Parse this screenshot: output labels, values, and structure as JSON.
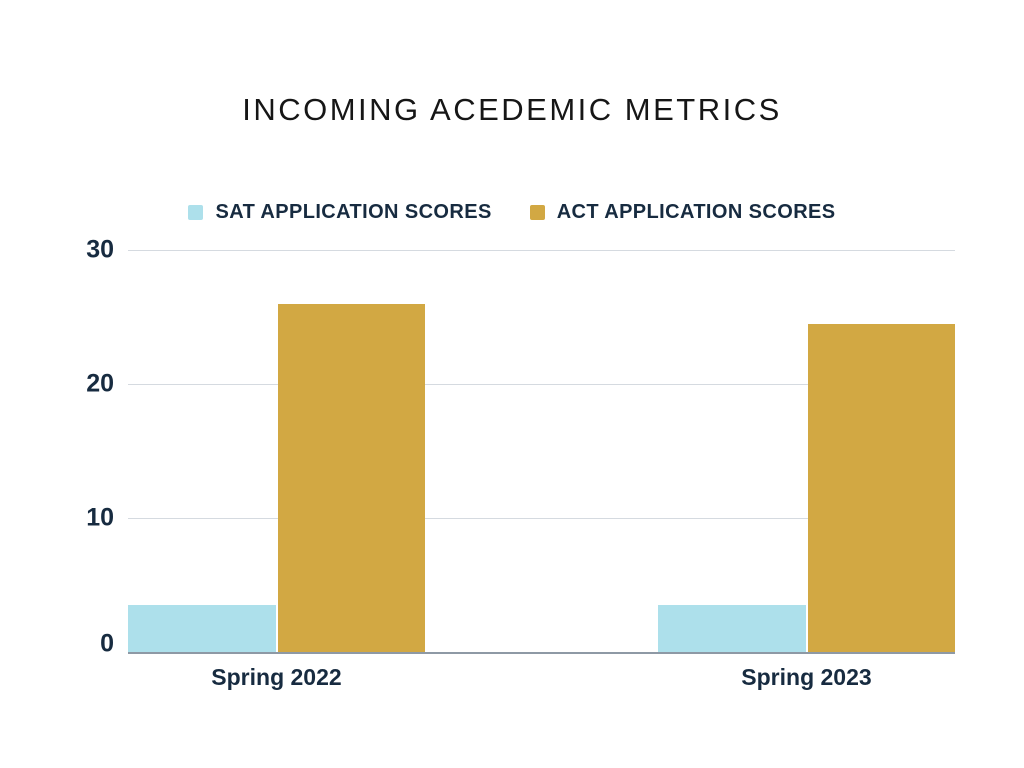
{
  "chart_data": {
    "type": "bar",
    "title": "INCOMING ACEDEMIC METRICS",
    "categories": [
      "Spring 2022",
      "Spring 2023"
    ],
    "series": [
      {
        "name": "SAT APPLICATION SCORES",
        "color": "#ADE0EB",
        "values": [
          3.5,
          3.5
        ]
      },
      {
        "name": "ACT APPLICATION SCORES",
        "color": "#D2A843",
        "values": [
          26,
          24.5
        ]
      }
    ],
    "ylim": [
      0,
      30
    ],
    "ytick_labels": [
      "0",
      "10",
      "20",
      "30"
    ],
    "grid": true,
    "legend_position": "top",
    "colors": {
      "background": "#FFFFFF",
      "title_text": "#161616",
      "axis_text": "#172B40",
      "gridline": "#D5DAE0",
      "axis_line": "#8E99A5"
    }
  }
}
